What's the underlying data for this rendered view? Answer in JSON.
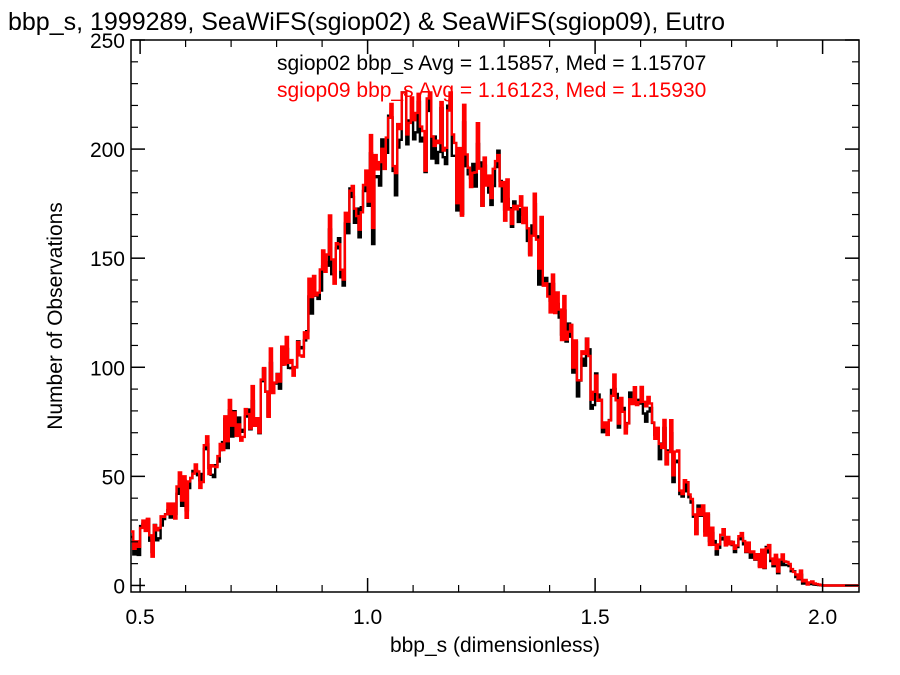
{
  "chart_data": {
    "type": "line",
    "title": "bbp_s, 1999289, SeaWiFS(sgiop02) & SeaWiFS(sgiop09), Eutro",
    "xlabel": "bbp_s (dimensionless)",
    "ylabel": "Number of Observations",
    "xlim": [
      0.48,
      2.08
    ],
    "ylim": [
      -3,
      250
    ],
    "xticks": [
      0.5,
      1.0,
      1.5,
      2.0
    ],
    "xtick_labels": [
      "0.5",
      "1.0",
      "1.5",
      "2.0"
    ],
    "yticks": [
      0,
      50,
      100,
      150,
      200,
      250
    ],
    "ytick_labels": [
      "0",
      "50",
      "100",
      "150",
      "200",
      "250"
    ],
    "grid": false,
    "bin_width": 0.005,
    "x_start": 0.48,
    "annotations": [
      {
        "text": "sgiop02 bbp_s Avg = 1.15857, Med = 1.15707",
        "color": "#000000"
      },
      {
        "text": "sgiop09 bbp_s Avg = 1.16123, Med = 1.15930",
        "color": "#ff0000"
      }
    ],
    "series": [
      {
        "color": "#000000",
        "style": "histogram-step",
        "keypoints": [
          [
            0.48,
            18
          ],
          [
            0.5,
            24
          ],
          [
            0.52,
            26
          ],
          [
            0.54,
            22
          ],
          [
            0.56,
            38
          ],
          [
            0.58,
            43
          ],
          [
            0.6,
            45
          ],
          [
            0.62,
            52
          ],
          [
            0.64,
            55
          ],
          [
            0.66,
            60
          ],
          [
            0.68,
            66
          ],
          [
            0.7,
            72
          ],
          [
            0.72,
            74
          ],
          [
            0.75,
            68
          ],
          [
            0.78,
            90
          ],
          [
            0.8,
            92
          ],
          [
            0.82,
            95
          ],
          [
            0.84,
            108
          ],
          [
            0.86,
            112
          ],
          [
            0.88,
            128
          ],
          [
            0.9,
            140
          ],
          [
            0.92,
            145
          ],
          [
            0.94,
            150
          ],
          [
            0.96,
            158
          ],
          [
            0.98,
            165
          ],
          [
            1.0,
            172
          ],
          [
            1.02,
            180
          ],
          [
            1.04,
            190
          ],
          [
            1.06,
            200
          ],
          [
            1.08,
            205
          ],
          [
            1.1,
            205
          ],
          [
            1.12,
            206
          ],
          [
            1.14,
            205
          ],
          [
            1.16,
            200
          ],
          [
            1.18,
            198
          ],
          [
            1.2,
            195
          ],
          [
            1.22,
            192
          ],
          [
            1.24,
            188
          ],
          [
            1.26,
            185
          ],
          [
            1.28,
            180
          ],
          [
            1.3,
            182
          ],
          [
            1.32,
            180
          ],
          [
            1.34,
            175
          ],
          [
            1.36,
            168
          ],
          [
            1.38,
            150
          ],
          [
            1.4,
            135
          ],
          [
            1.42,
            122
          ],
          [
            1.44,
            112
          ],
          [
            1.46,
            105
          ],
          [
            1.48,
            100
          ],
          [
            1.5,
            90
          ],
          [
            1.52,
            86
          ],
          [
            1.54,
            82
          ],
          [
            1.56,
            80
          ],
          [
            1.58,
            80
          ],
          [
            1.6,
            84
          ],
          [
            1.62,
            80
          ],
          [
            1.64,
            72
          ],
          [
            1.66,
            62
          ],
          [
            1.68,
            55
          ],
          [
            1.7,
            45
          ],
          [
            1.72,
            34
          ],
          [
            1.74,
            25
          ],
          [
            1.76,
            22
          ],
          [
            1.78,
            20
          ],
          [
            1.8,
            17
          ],
          [
            1.82,
            16
          ],
          [
            1.84,
            15
          ],
          [
            1.86,
            14
          ],
          [
            1.88,
            12
          ],
          [
            1.9,
            10
          ],
          [
            1.92,
            8
          ],
          [
            1.94,
            5
          ],
          [
            1.96,
            2
          ],
          [
            1.98,
            0.5
          ],
          [
            2.0,
            0
          ],
          [
            2.08,
            0
          ]
        ]
      },
      {
        "color": "#ff0000",
        "style": "histogram-step",
        "keypoints": [
          [
            0.48,
            18
          ],
          [
            0.5,
            25
          ],
          [
            0.52,
            26
          ],
          [
            0.54,
            24
          ],
          [
            0.56,
            40
          ],
          [
            0.58,
            44
          ],
          [
            0.6,
            46
          ],
          [
            0.62,
            53
          ],
          [
            0.64,
            56
          ],
          [
            0.66,
            62
          ],
          [
            0.68,
            67
          ],
          [
            0.7,
            73
          ],
          [
            0.72,
            75
          ],
          [
            0.75,
            70
          ],
          [
            0.78,
            92
          ],
          [
            0.8,
            94
          ],
          [
            0.82,
            98
          ],
          [
            0.84,
            110
          ],
          [
            0.86,
            115
          ],
          [
            0.88,
            131
          ],
          [
            0.9,
            143
          ],
          [
            0.92,
            148
          ],
          [
            0.94,
            152
          ],
          [
            0.96,
            160
          ],
          [
            0.98,
            167
          ],
          [
            1.0,
            174
          ],
          [
            1.02,
            182
          ],
          [
            1.04,
            193
          ],
          [
            1.06,
            203
          ],
          [
            1.08,
            208
          ],
          [
            1.1,
            208
          ],
          [
            1.12,
            209
          ],
          [
            1.14,
            207
          ],
          [
            1.16,
            202
          ],
          [
            1.18,
            200
          ],
          [
            1.2,
            197
          ],
          [
            1.22,
            194
          ],
          [
            1.24,
            190
          ],
          [
            1.26,
            187
          ],
          [
            1.28,
            182
          ],
          [
            1.3,
            184
          ],
          [
            1.32,
            182
          ],
          [
            1.34,
            177
          ],
          [
            1.36,
            170
          ],
          [
            1.38,
            152
          ],
          [
            1.4,
            136
          ],
          [
            1.42,
            124
          ],
          [
            1.44,
            114
          ],
          [
            1.46,
            107
          ],
          [
            1.48,
            102
          ],
          [
            1.5,
            92
          ],
          [
            1.52,
            88
          ],
          [
            1.54,
            84
          ],
          [
            1.56,
            82
          ],
          [
            1.58,
            82
          ],
          [
            1.6,
            86
          ],
          [
            1.62,
            82
          ],
          [
            1.64,
            74
          ],
          [
            1.66,
            64
          ],
          [
            1.68,
            56
          ],
          [
            1.7,
            46
          ],
          [
            1.72,
            35
          ],
          [
            1.74,
            26
          ],
          [
            1.76,
            23
          ],
          [
            1.78,
            21
          ],
          [
            1.8,
            18
          ],
          [
            1.82,
            17
          ],
          [
            1.84,
            16
          ],
          [
            1.86,
            15
          ],
          [
            1.88,
            13
          ],
          [
            1.9,
            11
          ],
          [
            1.92,
            9
          ],
          [
            1.94,
            6
          ],
          [
            1.96,
            3
          ],
          [
            1.98,
            1
          ],
          [
            2.0,
            0
          ],
          [
            2.08,
            0
          ]
        ]
      }
    ]
  }
}
